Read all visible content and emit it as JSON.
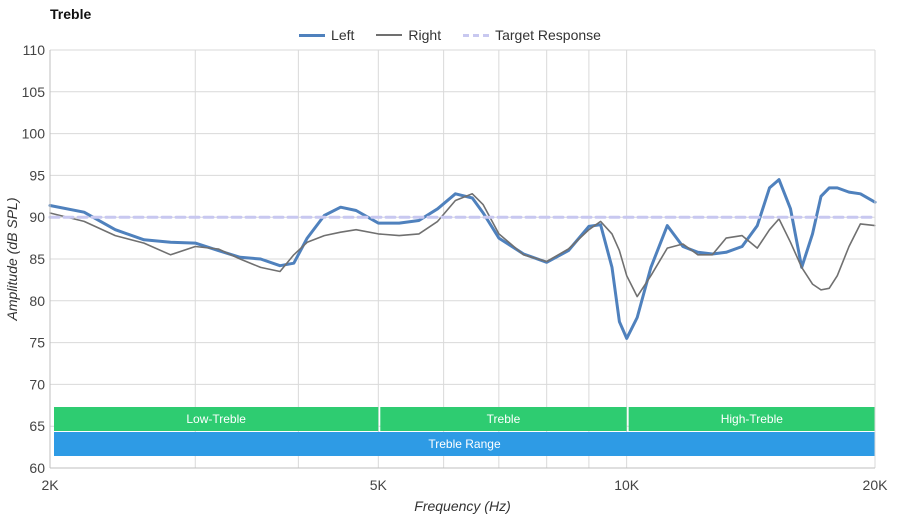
{
  "chart_data": {
    "type": "line",
    "title": "Treble",
    "xlabel": "Frequency (Hz)",
    "ylabel": "Amplitude (dB SPL)",
    "x_scale": "log",
    "xlim": [
      2000,
      20000
    ],
    "ylim": [
      60,
      110
    ],
    "x_ticks": [
      {
        "value": 2000,
        "label": "2K"
      },
      {
        "value": 5000,
        "label": "5K"
      },
      {
        "value": 10000,
        "label": "10K"
      },
      {
        "value": 20000,
        "label": "20K"
      }
    ],
    "x_gridlines": [
      2000,
      3000,
      4000,
      5000,
      6000,
      7000,
      8000,
      9000,
      10000,
      20000
    ],
    "y_ticks": [
      60,
      65,
      70,
      75,
      80,
      85,
      90,
      95,
      100,
      105,
      110
    ],
    "grid": true,
    "legend_position": "top-center",
    "series": [
      {
        "name": "Left",
        "color": "#4f81bd",
        "style": "solid",
        "x": [
          2000,
          2200,
          2400,
          2600,
          2800,
          3000,
          3200,
          3400,
          3600,
          3800,
          3950,
          4100,
          4300,
          4500,
          4700,
          5000,
          5300,
          5600,
          5900,
          6200,
          6500,
          6700,
          7000,
          7500,
          8000,
          8500,
          9000,
          9300,
          9600,
          9800,
          10000,
          10300,
          10700,
          11200,
          11700,
          12200,
          12700,
          13200,
          13800,
          14400,
          14900,
          15300,
          15800,
          16300,
          16800,
          17200,
          17600,
          18000,
          18600,
          19200,
          20000
        ],
        "values": [
          91.4,
          90.6,
          88.5,
          87.3,
          87.0,
          86.9,
          86.0,
          85.2,
          85.0,
          84.2,
          84.5,
          87.5,
          90.2,
          91.2,
          90.8,
          89.3,
          89.3,
          89.6,
          91.0,
          92.8,
          92.3,
          90.5,
          87.5,
          85.6,
          84.6,
          86.0,
          88.9,
          89.1,
          84.0,
          77.5,
          75.5,
          78.0,
          84.0,
          89.0,
          86.5,
          85.8,
          85.6,
          85.8,
          86.5,
          89.0,
          93.5,
          94.5,
          91.0,
          84.0,
          88.0,
          92.5,
          93.5,
          93.5,
          93.0,
          92.8,
          91.8
        ],
        "width": 3
      },
      {
        "name": "Right",
        "color": "#707070",
        "style": "solid",
        "x": [
          2000,
          2200,
          2400,
          2600,
          2800,
          3000,
          3200,
          3400,
          3600,
          3800,
          3950,
          4100,
          4300,
          4500,
          4700,
          5000,
          5300,
          5600,
          5900,
          6200,
          6500,
          6700,
          7000,
          7500,
          8000,
          8500,
          9000,
          9300,
          9600,
          9800,
          10000,
          10300,
          10700,
          11200,
          11700,
          12200,
          12700,
          13200,
          13800,
          14400,
          14900,
          15300,
          15800,
          16300,
          16800,
          17200,
          17600,
          18000,
          18600,
          19200,
          20000
        ],
        "values": [
          90.5,
          89.5,
          87.8,
          86.9,
          85.5,
          86.5,
          86.2,
          85.0,
          84.0,
          83.5,
          85.5,
          87.0,
          87.8,
          88.2,
          88.5,
          88.0,
          87.8,
          88.0,
          89.5,
          92.0,
          92.8,
          91.5,
          88.0,
          85.5,
          84.7,
          86.2,
          88.5,
          89.5,
          88.0,
          86.0,
          83.0,
          80.5,
          83.0,
          86.3,
          86.8,
          85.5,
          85.5,
          87.5,
          87.8,
          86.3,
          88.5,
          89.8,
          87.0,
          84.0,
          82.0,
          81.3,
          81.5,
          83.0,
          86.5,
          89.2,
          89.0
        ],
        "width": 1.6
      },
      {
        "name": "Target Response",
        "color": "#c8c8f0",
        "style": "dashed",
        "x": [
          2000,
          20000
        ],
        "values": [
          90,
          90
        ],
        "width": 3
      }
    ],
    "bands": [
      {
        "label": "Low-Treble",
        "from": 2000,
        "to": 5000,
        "color": "#2ecc71"
      },
      {
        "label": "Treble",
        "from": 5000,
        "to": 10000,
        "color": "#2ecc71"
      },
      {
        "label": "High-Treble",
        "from": 10000,
        "to": 20000,
        "color": "#2ecc71"
      },
      {
        "label": "Treble Range",
        "from": 2000,
        "to": 20000,
        "color": "#2e9be5"
      }
    ]
  }
}
